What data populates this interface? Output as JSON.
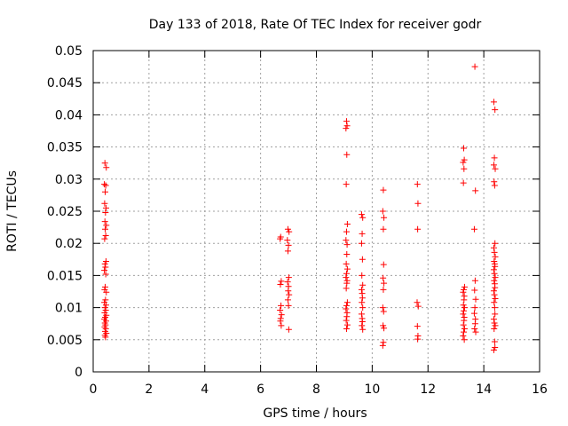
{
  "chart_data": {
    "type": "scatter",
    "title": "Day 133 of 2018, Rate Of TEC Index for receiver godr",
    "xlabel": "GPS time / hours",
    "ylabel": "ROTI / TECUs",
    "xlim": [
      0,
      16
    ],
    "ylim": [
      0,
      0.05
    ],
    "xticks": [
      0,
      2,
      4,
      6,
      8,
      10,
      12,
      14,
      16
    ],
    "xtick_labels": [
      "0",
      "2",
      "4",
      "6",
      "8",
      "10",
      "12",
      "14",
      "16"
    ],
    "yticks": [
      0,
      0.005,
      0.01,
      0.015,
      0.02,
      0.025,
      0.03,
      0.035,
      0.04,
      0.045,
      0.05
    ],
    "ytick_labels": [
      "0",
      "0.005",
      "0.01",
      "0.015",
      "0.02",
      "0.025",
      "0.03",
      "0.035",
      "0.04",
      "0.045",
      "0.05"
    ],
    "grid": true,
    "marker": "+",
    "color": "#ff0000",
    "series": [
      {
        "name": "ROTI",
        "points": [
          [
            0.42,
            0.0325
          ],
          [
            0.47,
            0.0318
          ],
          [
            0.4,
            0.0292
          ],
          [
            0.45,
            0.029
          ],
          [
            0.43,
            0.028
          ],
          [
            0.41,
            0.0262
          ],
          [
            0.46,
            0.0255
          ],
          [
            0.44,
            0.0248
          ],
          [
            0.42,
            0.0234
          ],
          [
            0.47,
            0.0228
          ],
          [
            0.43,
            0.0222
          ],
          [
            0.45,
            0.0212
          ],
          [
            0.41,
            0.0207
          ],
          [
            0.46,
            0.0172
          ],
          [
            0.42,
            0.0168
          ],
          [
            0.44,
            0.0163
          ],
          [
            0.4,
            0.0158
          ],
          [
            0.45,
            0.0152
          ],
          [
            0.43,
            0.0132
          ],
          [
            0.41,
            0.0128
          ],
          [
            0.47,
            0.0124
          ],
          [
            0.44,
            0.0112
          ],
          [
            0.4,
            0.0108
          ],
          [
            0.46,
            0.0104
          ],
          [
            0.42,
            0.01
          ],
          [
            0.45,
            0.0096
          ],
          [
            0.41,
            0.0092
          ],
          [
            0.47,
            0.0088
          ],
          [
            0.43,
            0.0085
          ],
          [
            0.4,
            0.0082
          ],
          [
            0.46,
            0.0079
          ],
          [
            0.42,
            0.0076
          ],
          [
            0.44,
            0.0073
          ],
          [
            0.41,
            0.007
          ],
          [
            0.45,
            0.0067
          ],
          [
            0.43,
            0.0063
          ],
          [
            0.47,
            0.006
          ],
          [
            0.42,
            0.0057
          ],
          [
            0.44,
            0.0054
          ],
          [
            6.72,
            0.021
          ],
          [
            6.7,
            0.0207
          ],
          [
            6.74,
            0.0141
          ],
          [
            6.71,
            0.0136
          ],
          [
            6.73,
            0.0103
          ],
          [
            6.7,
            0.0096
          ],
          [
            6.75,
            0.0089
          ],
          [
            6.72,
            0.0083
          ],
          [
            6.71,
            0.0079
          ],
          [
            6.74,
            0.0072
          ],
          [
            6.98,
            0.0222
          ],
          [
            7.02,
            0.0218
          ],
          [
            6.96,
            0.0205
          ],
          [
            7.0,
            0.0197
          ],
          [
            6.98,
            0.0188
          ],
          [
            7.01,
            0.0147
          ],
          [
            6.97,
            0.014
          ],
          [
            7.0,
            0.0133
          ],
          [
            6.99,
            0.0126
          ],
          [
            7.02,
            0.012
          ],
          [
            6.98,
            0.0112
          ],
          [
            7.0,
            0.0103
          ],
          [
            7.01,
            0.0066
          ],
          [
            9.08,
            0.039
          ],
          [
            9.1,
            0.0383
          ],
          [
            9.06,
            0.0379
          ],
          [
            9.09,
            0.0338
          ],
          [
            9.07,
            0.0292
          ],
          [
            9.11,
            0.023
          ],
          [
            9.08,
            0.0218
          ],
          [
            9.06,
            0.0205
          ],
          [
            9.1,
            0.0198
          ],
          [
            9.09,
            0.0183
          ],
          [
            9.07,
            0.0168
          ],
          [
            9.11,
            0.016
          ],
          [
            9.08,
            0.0153
          ],
          [
            9.06,
            0.0147
          ],
          [
            9.1,
            0.0142
          ],
          [
            9.09,
            0.0138
          ],
          [
            9.07,
            0.013
          ],
          [
            9.11,
            0.0108
          ],
          [
            9.08,
            0.0103
          ],
          [
            9.06,
            0.0098
          ],
          [
            9.1,
            0.0092
          ],
          [
            9.09,
            0.0086
          ],
          [
            9.07,
            0.008
          ],
          [
            9.11,
            0.0073
          ],
          [
            9.08,
            0.0067
          ],
          [
            9.62,
            0.0245
          ],
          [
            9.66,
            0.024
          ],
          [
            9.64,
            0.0215
          ],
          [
            9.62,
            0.02
          ],
          [
            9.65,
            0.0175
          ],
          [
            9.63,
            0.015
          ],
          [
            9.66,
            0.0135
          ],
          [
            9.62,
            0.0128
          ],
          [
            9.64,
            0.0122
          ],
          [
            9.65,
            0.0115
          ],
          [
            9.63,
            0.0108
          ],
          [
            9.66,
            0.01
          ],
          [
            9.62,
            0.009
          ],
          [
            9.64,
            0.0083
          ],
          [
            9.65,
            0.0078
          ],
          [
            9.63,
            0.0072
          ],
          [
            9.66,
            0.0066
          ],
          [
            10.4,
            0.0283
          ],
          [
            10.38,
            0.025
          ],
          [
            10.42,
            0.024
          ],
          [
            10.4,
            0.0222
          ],
          [
            10.41,
            0.0167
          ],
          [
            10.39,
            0.0146
          ],
          [
            10.42,
            0.0138
          ],
          [
            10.4,
            0.0128
          ],
          [
            10.38,
            0.01
          ],
          [
            10.41,
            0.0094
          ],
          [
            10.39,
            0.0072
          ],
          [
            10.42,
            0.0068
          ],
          [
            10.4,
            0.0046
          ],
          [
            10.38,
            0.0041
          ],
          [
            11.62,
            0.0292
          ],
          [
            11.64,
            0.0262
          ],
          [
            11.63,
            0.0222
          ],
          [
            11.61,
            0.0108
          ],
          [
            11.65,
            0.0102
          ],
          [
            11.62,
            0.0071
          ],
          [
            11.64,
            0.0056
          ],
          [
            11.63,
            0.0051
          ],
          [
            13.28,
            0.0348
          ],
          [
            13.3,
            0.033
          ],
          [
            13.26,
            0.0326
          ],
          [
            13.29,
            0.0316
          ],
          [
            13.27,
            0.0294
          ],
          [
            13.31,
            0.0132
          ],
          [
            13.28,
            0.0128
          ],
          [
            13.26,
            0.0124
          ],
          [
            13.3,
            0.0118
          ],
          [
            13.29,
            0.0112
          ],
          [
            13.27,
            0.0104
          ],
          [
            13.31,
            0.01
          ],
          [
            13.28,
            0.0095
          ],
          [
            13.26,
            0.009
          ],
          [
            13.3,
            0.0085
          ],
          [
            13.29,
            0.008
          ],
          [
            13.27,
            0.0073
          ],
          [
            13.31,
            0.0067
          ],
          [
            13.28,
            0.0062
          ],
          [
            13.26,
            0.0056
          ],
          [
            13.3,
            0.005
          ],
          [
            13.68,
            0.0475
          ],
          [
            13.7,
            0.0282
          ],
          [
            13.66,
            0.0222
          ],
          [
            13.69,
            0.0142
          ],
          [
            13.67,
            0.0127
          ],
          [
            13.71,
            0.0113
          ],
          [
            13.68,
            0.01
          ],
          [
            13.66,
            0.0091
          ],
          [
            13.7,
            0.0082
          ],
          [
            13.69,
            0.0075
          ],
          [
            13.67,
            0.0067
          ],
          [
            13.71,
            0.0062
          ],
          [
            14.36,
            0.042
          ],
          [
            14.4,
            0.0408
          ],
          [
            14.38,
            0.0333
          ],
          [
            14.36,
            0.0322
          ],
          [
            14.41,
            0.0316
          ],
          [
            14.37,
            0.0296
          ],
          [
            14.39,
            0.029
          ],
          [
            14.4,
            0.02
          ],
          [
            14.36,
            0.0193
          ],
          [
            14.38,
            0.0186
          ],
          [
            14.41,
            0.0179
          ],
          [
            14.37,
            0.0172
          ],
          [
            14.39,
            0.0168
          ],
          [
            14.4,
            0.0164
          ],
          [
            14.36,
            0.0159
          ],
          [
            14.38,
            0.0153
          ],
          [
            14.41,
            0.0147
          ],
          [
            14.37,
            0.0142
          ],
          [
            14.39,
            0.0137
          ],
          [
            14.4,
            0.0131
          ],
          [
            14.36,
            0.0126
          ],
          [
            14.38,
            0.012
          ],
          [
            14.41,
            0.0114
          ],
          [
            14.37,
            0.0108
          ],
          [
            14.39,
            0.01
          ],
          [
            14.4,
            0.009
          ],
          [
            14.36,
            0.0082
          ],
          [
            14.38,
            0.0076
          ],
          [
            14.41,
            0.0072
          ],
          [
            14.37,
            0.0067
          ],
          [
            14.39,
            0.0047
          ],
          [
            14.4,
            0.0038
          ],
          [
            14.36,
            0.0034
          ]
        ]
      }
    ]
  }
}
